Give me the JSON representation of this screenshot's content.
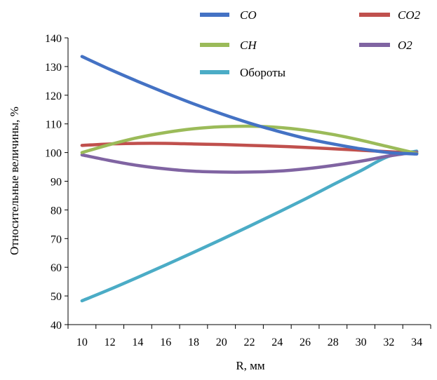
{
  "chart_data": {
    "type": "line",
    "xlabel": "R, мм",
    "ylabel": "Относительные величины, %",
    "ylim": [
      40,
      140
    ],
    "yticks": [
      40,
      50,
      60,
      70,
      80,
      90,
      100,
      110,
      120,
      130,
      140
    ],
    "xlim": [
      9,
      35
    ],
    "xticks": [
      10,
      12,
      14,
      16,
      18,
      20,
      22,
      24,
      26,
      28,
      30,
      32,
      34
    ],
    "grid": false,
    "legend_placement": "top",
    "series": [
      {
        "name": "CO",
        "color": "#4472C4",
        "x": [
          10,
          12,
          14,
          16,
          18,
          20,
          22,
          24,
          26,
          28,
          30,
          32,
          34
        ],
        "y": [
          133.5,
          129,
          124.8,
          120.8,
          117,
          113.5,
          110.3,
          107.5,
          105,
          103,
          101.3,
          100,
          99.5
        ]
      },
      {
        "name": "CO2",
        "color": "#C0504D",
        "x": [
          10,
          12,
          14,
          16,
          18,
          20,
          22,
          24,
          26,
          28,
          30,
          32,
          34
        ],
        "y": [
          102.5,
          103,
          103.2,
          103.2,
          103,
          102.8,
          102.5,
          102.2,
          101.8,
          101.3,
          100.8,
          100.3,
          99.8
        ]
      },
      {
        "name": "CH",
        "color": "#9BBB59",
        "x": [
          10,
          12,
          14,
          16,
          18,
          20,
          22,
          24,
          26,
          28,
          30,
          32,
          34
        ],
        "y": [
          100,
          102.8,
          105.2,
          107,
          108.3,
          109,
          109.2,
          108.8,
          107.8,
          106.3,
          104.3,
          102,
          99.7
        ]
      },
      {
        "name": "O2",
        "color": "#8064A2",
        "x": [
          10,
          12,
          14,
          16,
          18,
          20,
          22,
          24,
          26,
          28,
          30,
          32,
          34
        ],
        "y": [
          99.2,
          97.2,
          95.5,
          94.3,
          93.5,
          93.2,
          93.2,
          93.5,
          94.3,
          95.5,
          97,
          98.8,
          100.2
        ]
      },
      {
        "name": "Обороты",
        "color": "#4BACC6",
        "x": [
          10,
          12,
          14,
          16,
          18,
          20,
          22,
          24,
          26,
          28,
          30,
          32,
          34
        ],
        "y": [
          48.3,
          52.3,
          56.5,
          60.8,
          65.2,
          69.7,
          74.3,
          79,
          83.8,
          88.8,
          93.7,
          98.7,
          100.5
        ]
      }
    ]
  },
  "legend": {
    "entries": [
      {
        "label": "CO",
        "series": 0,
        "italic": true
      },
      {
        "label": "CO2",
        "series": 1,
        "italic": true
      },
      {
        "label": "CH",
        "series": 2,
        "italic": true
      },
      {
        "label": "O2",
        "series": 3,
        "italic": true
      },
      {
        "label": "Обороты",
        "series": 4,
        "italic": false
      }
    ]
  }
}
